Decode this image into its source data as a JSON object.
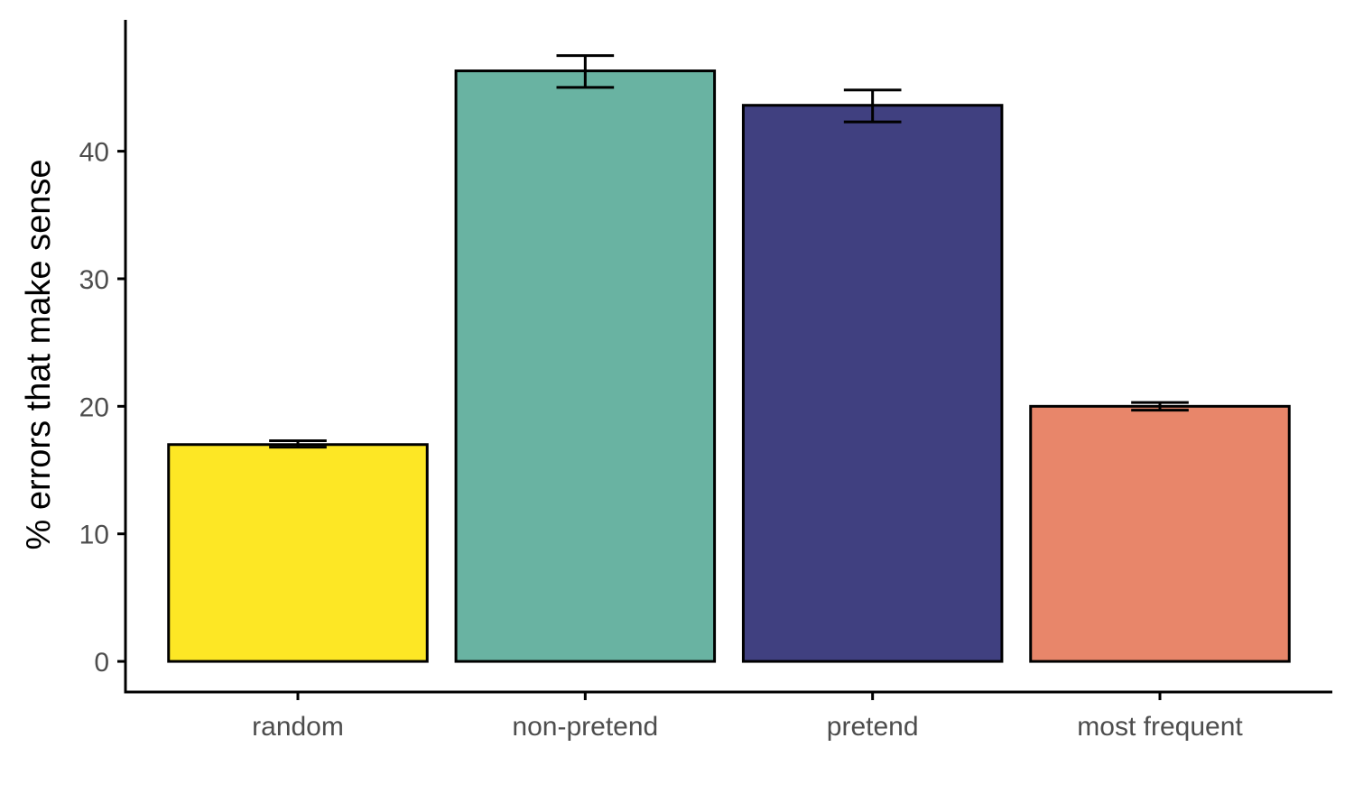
{
  "chart_data": {
    "type": "bar",
    "title": "",
    "xlabel": "",
    "ylabel": "% errors that make sense",
    "categories": [
      "random",
      "non-pretend",
      "pretend",
      "most frequent"
    ],
    "values": [
      17.0,
      46.3,
      43.6,
      20.0
    ],
    "error_low": [
      16.8,
      45.0,
      42.3,
      19.7
    ],
    "error_high": [
      17.3,
      47.5,
      44.8,
      20.3
    ],
    "colors": [
      "#FDE725",
      "#69B3A2",
      "#404080",
      "#E8866A"
    ],
    "ylim": [
      -2.4,
      50.3
    ],
    "yticks": [
      0,
      10,
      20,
      30,
      40
    ],
    "grid": false,
    "legend": "none"
  }
}
